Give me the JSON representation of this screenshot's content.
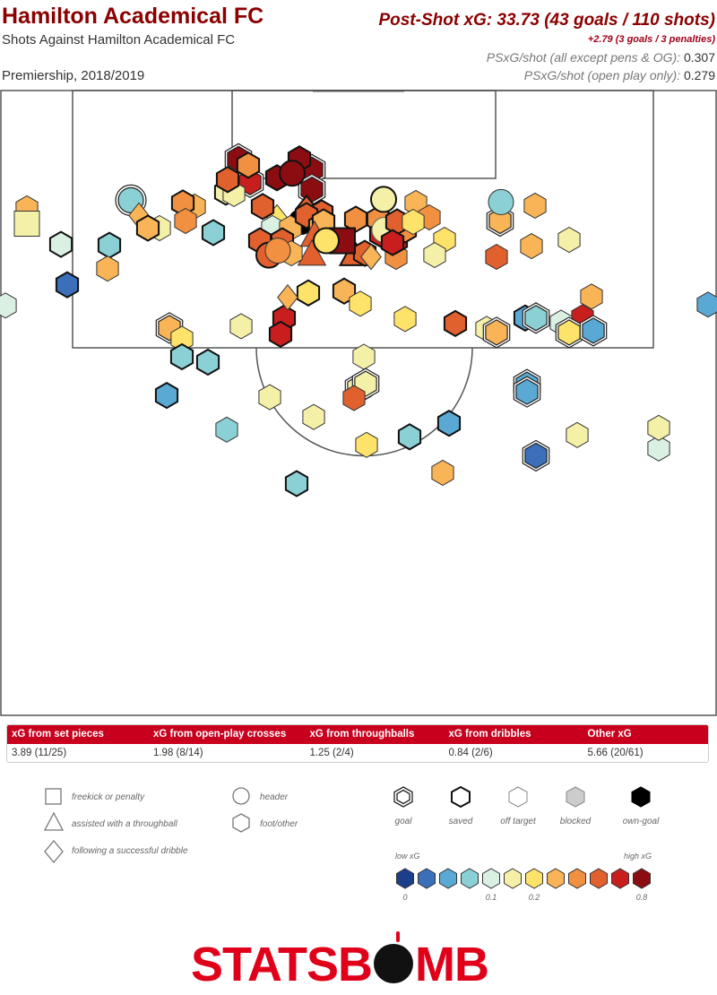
{
  "header": {
    "title": "Hamilton Academical FC",
    "subtitle": "Shots Against Hamilton Academical FC",
    "competition": "Premiership, 2018/2019",
    "psxg_headline": "Post-Shot xG: 33.73 (43 goals / 110 shots)",
    "psxg_extra": "+2.79 (3 goals / 3 penalties)",
    "stat1_label": "PSxG/shot (all except pens & OG):",
    "stat1_value": "0.307",
    "stat2_label": "PSxG/shot (open play only):",
    "stat2_value": "0.279"
  },
  "xg_table": {
    "headers": [
      "xG from set pieces",
      "xG from open-play crosses",
      "xG from throughballs",
      "xG from dribbles",
      "Other xG"
    ],
    "values": [
      "3.89 (11/25)",
      "1.98 (8/14)",
      "1.25 (2/4)",
      "0.84 (2/6)",
      "5.66 (20/61)"
    ]
  },
  "legend": {
    "shape_items": [
      {
        "shape": "square",
        "label": "freekick or penalty"
      },
      {
        "shape": "triangle",
        "label": "assisted with a throughball"
      },
      {
        "shape": "diamond",
        "label": "following a successful dribble"
      },
      {
        "shape": "circle",
        "label": "header"
      },
      {
        "shape": "hexagon",
        "label": "foot/other"
      }
    ],
    "outcome_items": [
      {
        "outcome": "goal",
        "label": "goal"
      },
      {
        "outcome": "saved",
        "label": "saved"
      },
      {
        "outcome": "off-target",
        "label": "off target"
      },
      {
        "outcome": "blocked",
        "label": "blocked"
      },
      {
        "outcome": "own-goal",
        "label": "own-goal"
      }
    ],
    "scale_low_label": "low xG",
    "scale_high_label": "high xG",
    "scale_ticks": [
      "0",
      "0.1",
      "0.2",
      "0.8"
    ],
    "scale_colors": [
      "#1c3f8c",
      "#3b6fba",
      "#5aa8d4",
      "#8bd0d4",
      "#d9f0e3",
      "#f5f0a8",
      "#fde36a",
      "#f8b456",
      "#f09040",
      "#e0602e",
      "#c81e1e",
      "#8b0d12"
    ]
  },
  "brand": {
    "logo_left": "STATSB",
    "logo_right": "MB"
  },
  "chart_data": {
    "type": "scatter",
    "title": "Hamilton Academical FC",
    "pitch": {
      "length": 120,
      "width": 80,
      "view": "attacking half"
    },
    "shots": [
      {
        "x": 111.1,
        "y": 34.8,
        "xg": 0.75,
        "shape": "hexagon",
        "outcome": "goal"
      },
      {
        "x": 108.9,
        "y": 34.8,
        "xg": 0.72,
        "shape": "hexagon",
        "outcome": "goal"
      },
      {
        "x": 112.3,
        "y": 26.6,
        "xg": 0.7,
        "shape": "hexagon",
        "outcome": "goal"
      },
      {
        "x": 110.2,
        "y": 30.9,
        "xg": 0.7,
        "shape": "hexagon",
        "outcome": "saved"
      },
      {
        "x": 109.7,
        "y": 27.9,
        "xg": 0.6,
        "shape": "hexagon",
        "outcome": "goal"
      },
      {
        "x": 111.6,
        "y": 27.7,
        "xg": 0.32,
        "shape": "hexagon",
        "outcome": "saved"
      },
      {
        "x": 108.6,
        "y": 25.2,
        "xg": 0.12,
        "shape": "hexagon",
        "outcome": "saved"
      },
      {
        "x": 112.3,
        "y": 33.4,
        "xg": 0.7,
        "shape": "hexagon",
        "outcome": "saved"
      },
      {
        "x": 110.7,
        "y": 32.6,
        "xg": 0.75,
        "shape": "circle",
        "outcome": "saved"
      },
      {
        "x": 105.8,
        "y": 30.9,
        "xg": 0.18,
        "shape": "diamond",
        "outcome": "off-target"
      },
      {
        "x": 106.8,
        "y": 34.2,
        "xg": 0.45,
        "shape": "diamond",
        "outcome": "saved"
      },
      {
        "x": 105.3,
        "y": 33.6,
        "xg": 0.05,
        "shape": "circle",
        "outcome": "own-goal"
      },
      {
        "x": 104.6,
        "y": 30.4,
        "xg": 0.09,
        "shape": "hexagon",
        "outcome": "off-target"
      },
      {
        "x": 104.6,
        "y": 32.4,
        "xg": 0.2,
        "shape": "hexagon",
        "outcome": "off-target"
      },
      {
        "x": 107.0,
        "y": 29.3,
        "xg": 0.4,
        "shape": "hexagon",
        "outcome": "saved"
      },
      {
        "x": 106.3,
        "y": 35.9,
        "xg": 0.45,
        "shape": "hexagon",
        "outcome": "saved"
      },
      {
        "x": 105.6,
        "y": 39.7,
        "xg": 0.35,
        "shape": "hexagon",
        "outcome": "saved"
      },
      {
        "x": 105.6,
        "y": 42.2,
        "xg": 0.35,
        "shape": "hexagon",
        "outcome": "saved"
      },
      {
        "x": 106.0,
        "y": 34.2,
        "xg": 0.45,
        "shape": "hexagon",
        "outcome": "saved"
      },
      {
        "x": 104.8,
        "y": 35.7,
        "xg": 0.2,
        "shape": "hexagon",
        "outcome": "saved"
      },
      {
        "x": 105.3,
        "y": 36.1,
        "xg": 0.2,
        "shape": "hexagon",
        "outcome": "saved"
      },
      {
        "x": 103.7,
        "y": 35.1,
        "xg": 0.4,
        "shape": "triangle",
        "outcome": "off-target"
      },
      {
        "x": 101.6,
        "y": 34.8,
        "xg": 0.5,
        "shape": "triangle",
        "outcome": "off-target"
      },
      {
        "x": 101.6,
        "y": 39.5,
        "xg": 0.45,
        "shape": "triangle",
        "outcome": "saved"
      },
      {
        "x": 101.8,
        "y": 40.7,
        "xg": 0.45,
        "shape": "hexagon",
        "outcome": "saved"
      },
      {
        "x": 101.4,
        "y": 41.4,
        "xg": 0.22,
        "shape": "diamond",
        "outcome": "off-target"
      },
      {
        "x": 101.4,
        "y": 44.2,
        "xg": 0.35,
        "shape": "hexagon",
        "outcome": "off-target"
      },
      {
        "x": 103.2,
        "y": 44.2,
        "xg": 0.58,
        "shape": "hexagon",
        "outcome": "saved"
      },
      {
        "x": 103.9,
        "y": 42.5,
        "xg": 0.55,
        "shape": "hexagon",
        "outcome": "saved"
      },
      {
        "x": 104.4,
        "y": 42.9,
        "xg": 0.12,
        "shape": "circle",
        "outcome": "blocked"
      },
      {
        "x": 104.4,
        "y": 45.2,
        "xg": 0.38,
        "shape": "hexagon",
        "outcome": "saved"
      },
      {
        "x": 105.3,
        "y": 44.3,
        "xg": 0.45,
        "shape": "hexagon",
        "outcome": "saved"
      },
      {
        "x": 103.0,
        "y": 43.8,
        "xg": 0.62,
        "shape": "hexagon",
        "outcome": "saved"
      },
      {
        "x": 103.2,
        "y": 38.2,
        "xg": 0.8,
        "shape": "square",
        "outcome": "saved"
      },
      {
        "x": 103.2,
        "y": 36.4,
        "xg": 0.18,
        "shape": "circle",
        "outcome": "saved"
      },
      {
        "x": 107.8,
        "y": 42.8,
        "xg": 0.12,
        "shape": "circle",
        "outcome": "saved"
      },
      {
        "x": 107.4,
        "y": 46.4,
        "xg": 0.2,
        "shape": "hexagon",
        "outcome": "off-target"
      },
      {
        "x": 105.8,
        "y": 47.9,
        "xg": 0.3,
        "shape": "hexagon",
        "outcome": "off-target"
      },
      {
        "x": 103.3,
        "y": 49.6,
        "xg": 0.18,
        "shape": "hexagon",
        "outcome": "off-target"
      },
      {
        "x": 101.6,
        "y": 48.5,
        "xg": 0.12,
        "shape": "hexagon",
        "outcome": "off-target"
      },
      {
        "x": 105.3,
        "y": 46.1,
        "xg": 0.15,
        "shape": "hexagon",
        "outcome": "off-target"
      },
      {
        "x": 103.2,
        "y": 31.5,
        "xg": 0.4,
        "shape": "hexagon",
        "outcome": "saved"
      },
      {
        "x": 103.2,
        "y": 29.0,
        "xg": 0.4,
        "shape": "hexagon",
        "outcome": "saved"
      },
      {
        "x": 101.6,
        "y": 30.0,
        "xg": 0.42,
        "shape": "circle",
        "outcome": "saved"
      },
      {
        "x": 101.8,
        "y": 32.5,
        "xg": 0.25,
        "shape": "hexagon",
        "outcome": "off-target"
      },
      {
        "x": 102.1,
        "y": 31.0,
        "xg": 0.35,
        "shape": "circle",
        "outcome": "off-target"
      },
      {
        "x": 108.4,
        "y": 26.1,
        "xg": 0.12,
        "shape": "hexagon",
        "outcome": "off-target"
      },
      {
        "x": 110.0,
        "y": 25.4,
        "xg": 0.5,
        "shape": "hexagon",
        "outcome": "saved"
      },
      {
        "x": 107.0,
        "y": 21.7,
        "xg": 0.2,
        "shape": "hexagon",
        "outcome": "off-target"
      },
      {
        "x": 107.4,
        "y": 20.4,
        "xg": 0.32,
        "shape": "hexagon",
        "outcome": "saved"
      },
      {
        "x": 105.4,
        "y": 20.7,
        "xg": 0.37,
        "shape": "hexagon",
        "outcome": "off-target"
      },
      {
        "x": 104.1,
        "y": 23.8,
        "xg": 0.07,
        "shape": "hexagon",
        "outcome": "saved"
      },
      {
        "x": 107.7,
        "y": 14.6,
        "xg": 0.07,
        "shape": "circle",
        "outcome": "goal"
      },
      {
        "x": 106.0,
        "y": 15.5,
        "xg": 0.2,
        "shape": "diamond",
        "outcome": "off-target"
      },
      {
        "x": 104.6,
        "y": 17.8,
        "xg": 0.13,
        "shape": "hexagon",
        "outcome": "off-target"
      },
      {
        "x": 104.6,
        "y": 16.5,
        "xg": 0.22,
        "shape": "hexagon",
        "outcome": "saved"
      },
      {
        "x": 102.7,
        "y": 12.2,
        "xg": 0.07,
        "shape": "hexagon",
        "outcome": "saved"
      },
      {
        "x": 98.3,
        "y": 7.5,
        "xg": 0.02,
        "shape": "hexagon",
        "outcome": "saved"
      },
      {
        "x": 102.8,
        "y": 6.8,
        "xg": 0.09,
        "shape": "hexagon",
        "outcome": "saved"
      },
      {
        "x": 100.1,
        "y": 12.0,
        "xg": 0.22,
        "shape": "hexagon",
        "outcome": "off-target"
      },
      {
        "x": 106.8,
        "y": 3.0,
        "xg": 0.2,
        "shape": "hexagon",
        "outcome": "off-target"
      },
      {
        "x": 105.1,
        "y": 3.0,
        "xg": 0.12,
        "shape": "square",
        "outcome": "off-target"
      },
      {
        "x": 96.0,
        "y": 0.6,
        "xg": 0.09,
        "shape": "hexagon",
        "outcome": "off-target"
      },
      {
        "x": 93.5,
        "y": 18.9,
        "xg": 0.22,
        "shape": "hexagon",
        "outcome": "goal"
      },
      {
        "x": 92.3,
        "y": 20.3,
        "xg": 0.15,
        "shape": "hexagon",
        "outcome": "off-target"
      },
      {
        "x": 90.3,
        "y": 20.3,
        "xg": 0.07,
        "shape": "hexagon",
        "outcome": "saved"
      },
      {
        "x": 86.0,
        "y": 18.6,
        "xg": 0.05,
        "shape": "hexagon",
        "outcome": "saved"
      },
      {
        "x": 89.7,
        "y": 23.2,
        "xg": 0.07,
        "shape": "hexagon",
        "outcome": "saved"
      },
      {
        "x": 82.2,
        "y": 25.3,
        "xg": 0.07,
        "shape": "hexagon",
        "outcome": "off-target"
      },
      {
        "x": 85.8,
        "y": 30.1,
        "xg": 0.12,
        "shape": "hexagon",
        "outcome": "off-target"
      },
      {
        "x": 94.6,
        "y": 31.7,
        "xg": 0.55,
        "shape": "hexagon",
        "outcome": "saved"
      },
      {
        "x": 92.8,
        "y": 31.3,
        "xg": 0.6,
        "shape": "hexagon",
        "outcome": "saved"
      },
      {
        "x": 93.7,
        "y": 26.9,
        "xg": 0.12,
        "shape": "hexagon",
        "outcome": "off-target"
      },
      {
        "x": 97.4,
        "y": 34.4,
        "xg": 0.19,
        "shape": "hexagon",
        "outcome": "saved"
      },
      {
        "x": 97.6,
        "y": 38.4,
        "xg": 0.22,
        "shape": "hexagon",
        "outcome": "saved"
      },
      {
        "x": 96.9,
        "y": 32.1,
        "xg": 0.2,
        "shape": "diamond",
        "outcome": "off-target"
      },
      {
        "x": 96.2,
        "y": 40.2,
        "xg": 0.15,
        "shape": "hexagon",
        "outcome": "off-target"
      },
      {
        "x": 90.3,
        "y": 40.6,
        "xg": 0.13,
        "shape": "hexagon",
        "outcome": "off-target"
      },
      {
        "x": 86.8,
        "y": 40.0,
        "xg": 0.1,
        "shape": "hexagon",
        "outcome": "goal"
      },
      {
        "x": 87.3,
        "y": 40.8,
        "xg": 0.1,
        "shape": "hexagon",
        "outcome": "goal"
      },
      {
        "x": 85.7,
        "y": 39.5,
        "xg": 0.45,
        "shape": "hexagon",
        "outcome": "off-target"
      },
      {
        "x": 83.6,
        "y": 35.0,
        "xg": 0.1,
        "shape": "hexagon",
        "outcome": "off-target"
      },
      {
        "x": 80.5,
        "y": 40.9,
        "xg": 0.19,
        "shape": "hexagon",
        "outcome": "off-target"
      },
      {
        "x": 94.5,
        "y": 45.2,
        "xg": 0.17,
        "shape": "hexagon",
        "outcome": "off-target"
      },
      {
        "x": 94.0,
        "y": 50.8,
        "xg": 0.4,
        "shape": "hexagon",
        "outcome": "saved"
      },
      {
        "x": 93.4,
        "y": 54.3,
        "xg": 0.1,
        "shape": "hexagon",
        "outcome": "off-target"
      },
      {
        "x": 93.0,
        "y": 55.4,
        "xg": 0.2,
        "shape": "hexagon",
        "outcome": "goal"
      },
      {
        "x": 94.6,
        "y": 58.6,
        "xg": 0.04,
        "shape": "hexagon",
        "outcome": "saved"
      },
      {
        "x": 94.6,
        "y": 59.8,
        "xg": 0.07,
        "shape": "hexagon",
        "outcome": "goal"
      },
      {
        "x": 87.2,
        "y": 58.8,
        "xg": 0.05,
        "shape": "hexagon",
        "outcome": "goal"
      },
      {
        "x": 86.4,
        "y": 58.8,
        "xg": 0.05,
        "shape": "hexagon",
        "outcome": "goal"
      },
      {
        "x": 79.3,
        "y": 59.8,
        "xg": 0.02,
        "shape": "hexagon",
        "outcome": "goal"
      },
      {
        "x": 81.4,
        "y": 45.7,
        "xg": 0.07,
        "shape": "hexagon",
        "outcome": "saved"
      },
      {
        "x": 77.4,
        "y": 49.4,
        "xg": 0.2,
        "shape": "hexagon",
        "outcome": "off-target"
      },
      {
        "x": 76.2,
        "y": 33.1,
        "xg": 0.07,
        "shape": "hexagon",
        "outcome": "saved"
      },
      {
        "x": 81.6,
        "y": 64.4,
        "xg": 0.12,
        "shape": "hexagon",
        "outcome": "off-target"
      },
      {
        "x": 82.9,
        "y": 50.1,
        "xg": 0.05,
        "shape": "hexagon",
        "outcome": "saved"
      },
      {
        "x": 80.1,
        "y": 73.5,
        "xg": 0.09,
        "shape": "hexagon",
        "outcome": "off-target"
      },
      {
        "x": 82.4,
        "y": 73.5,
        "xg": 0.1,
        "shape": "hexagon",
        "outcome": "off-target"
      },
      {
        "x": 96.1,
        "y": 79.0,
        "xg": 0.05,
        "shape": "hexagon",
        "outcome": "off-target"
      },
      {
        "x": 97.0,
        "y": 66.0,
        "xg": 0.25,
        "shape": "hexagon",
        "outcome": "off-target"
      },
      {
        "x": 94.7,
        "y": 65.0,
        "xg": 0.55,
        "shape": "hexagon",
        "outcome": "off-target"
      },
      {
        "x": 94.1,
        "y": 62.6,
        "xg": 0.09,
        "shape": "hexagon",
        "outcome": "off-target"
      },
      {
        "x": 93.0,
        "y": 63.5,
        "xg": 0.19,
        "shape": "hexagon",
        "outcome": "goal"
      },
      {
        "x": 107.1,
        "y": 59.7,
        "xg": 0.2,
        "shape": "hexagon",
        "outcome": "off-target"
      },
      {
        "x": 102.6,
        "y": 59.3,
        "xg": 0.2,
        "shape": "hexagon",
        "outcome": "off-target"
      },
      {
        "x": 101.4,
        "y": 55.4,
        "xg": 0.45,
        "shape": "hexagon",
        "outcome": "off-target"
      },
      {
        "x": 105.4,
        "y": 55.8,
        "xg": 0.2,
        "shape": "hexagon",
        "outcome": "goal"
      },
      {
        "x": 107.5,
        "y": 55.9,
        "xg": 0.07,
        "shape": "circle",
        "outcome": "off-target"
      },
      {
        "x": 103.3,
        "y": 63.5,
        "xg": 0.1,
        "shape": "hexagon",
        "outcome": "off-target"
      },
      {
        "x": 93.2,
        "y": 66.2,
        "xg": 0.05,
        "shape": "hexagon",
        "outcome": "goal"
      }
    ]
  }
}
